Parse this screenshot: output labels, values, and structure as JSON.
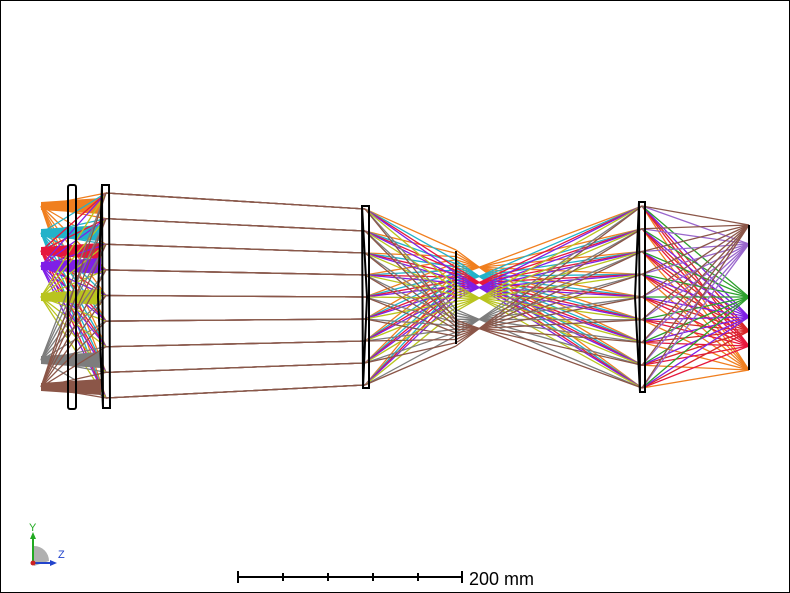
{
  "viewer": {
    "axis_triad": {
      "y_label": "Y",
      "z_label": "Z"
    },
    "scale_bar": {
      "label": "200 mm"
    }
  },
  "colors": {
    "ray_fields": [
      "#f07f1f",
      "#22b2c9",
      "#e6173d",
      "#7f1fe6",
      "#b9c41f",
      "#7d7d7d",
      "#8b5648"
    ],
    "image_fields": [
      "#8b5648",
      "#9966cc",
      "#2ca02c",
      "#7f1fe6",
      "#e6173d",
      "#d62728",
      "#f07f1f"
    ],
    "lens_outline": "#000000"
  },
  "diagram": {
    "type": "optical-layout-2d",
    "elements": [
      "lens-1",
      "lens-2",
      "lens-3",
      "aperture-stop",
      "lens-4",
      "image-plane"
    ]
  }
}
